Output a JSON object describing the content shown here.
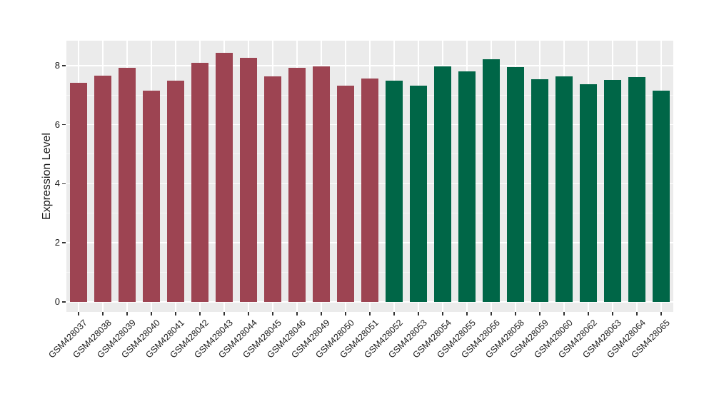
{
  "chart_data": {
    "type": "bar",
    "title": "",
    "xlabel": "",
    "ylabel": "Expression Level",
    "categories": [
      "GSM428037",
      "GSM428038",
      "GSM428039",
      "GSM428040",
      "GSM428041",
      "GSM428042",
      "GSM428043",
      "GSM428044",
      "GSM428045",
      "GSM428046",
      "GSM428049",
      "GSM428050",
      "GSM428051",
      "GSM428052",
      "GSM428053",
      "GSM428054",
      "GSM428055",
      "GSM428056",
      "GSM428058",
      "GSM428059",
      "GSM428060",
      "GSM428062",
      "GSM428063",
      "GSM428064",
      "GSM428065"
    ],
    "values": [
      7.41,
      7.66,
      7.92,
      7.16,
      7.49,
      8.08,
      8.42,
      8.26,
      7.63,
      7.92,
      7.97,
      7.33,
      7.55,
      7.48,
      7.32,
      7.97,
      7.8,
      8.22,
      7.95,
      7.53,
      7.63,
      7.37,
      7.5,
      7.61,
      7.16
    ],
    "bar_group_index": [
      0,
      0,
      0,
      0,
      0,
      0,
      0,
      0,
      0,
      0,
      0,
      0,
      0,
      1,
      1,
      1,
      1,
      1,
      1,
      1,
      1,
      1,
      1,
      1,
      1
    ],
    "group_colors": [
      "#9D4452",
      "#006647"
    ],
    "ylim": [
      0,
      8.84
    ],
    "yticks": [
      0,
      2,
      4,
      6,
      8
    ],
    "ytick_labels": [
      "0",
      "2",
      "4",
      "6",
      "8"
    ],
    "minor_yticks": [
      1,
      3,
      5,
      7
    ],
    "grid": true,
    "legend_position": "none",
    "panel_background": "#EBEBEB",
    "grid_color": "#FFFFFF",
    "axis_text_color": "#1A1A1A",
    "tick_color": "#333333",
    "background": "#FFFFFF"
  }
}
